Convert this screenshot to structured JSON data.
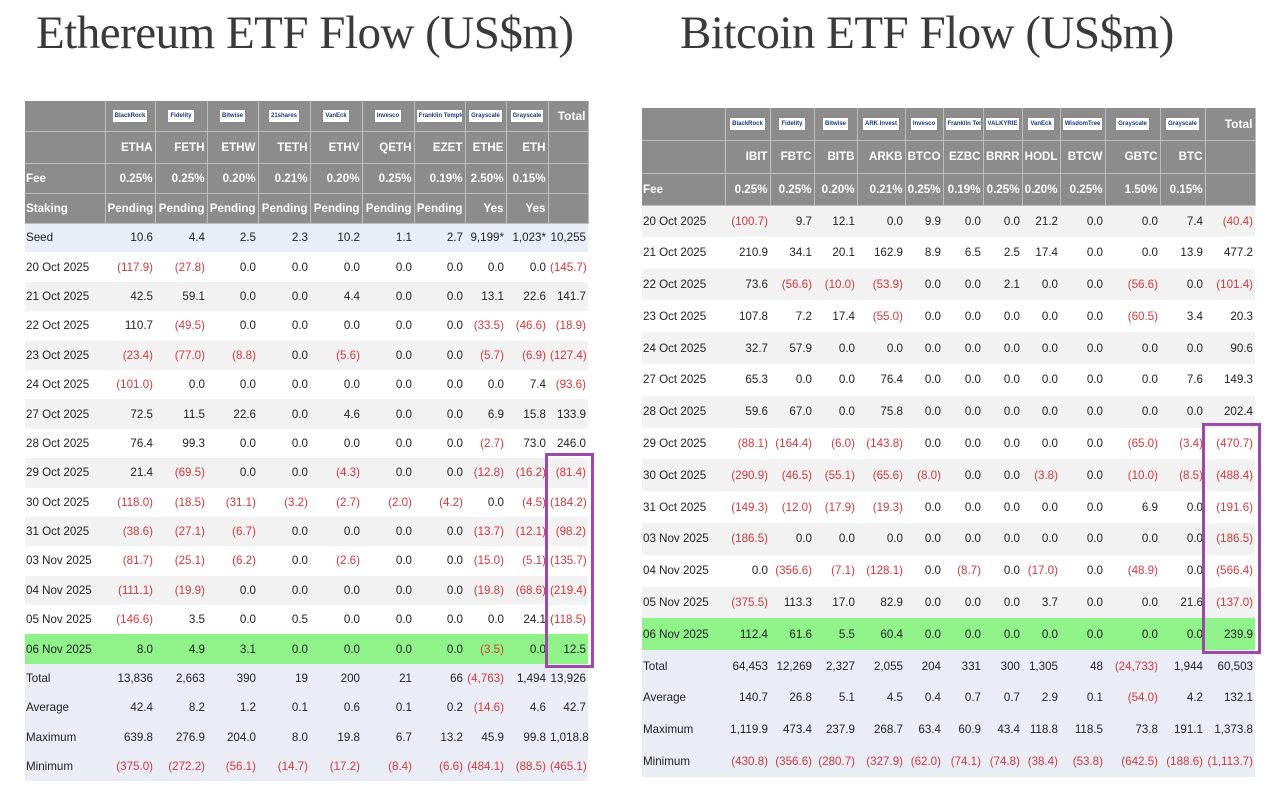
{
  "colors": {
    "header_bg": "#8c8c8c",
    "negative": "#d23a3c",
    "highlight_row": "#8ff38a",
    "outline_box": "#9c4aa8"
  },
  "chart_data": [
    {
      "type": "table",
      "title": "Ethereum ETF Flow (US$m)",
      "issuers": [
        "BlackRock",
        "Fidelity",
        "Bitwise",
        "21shares",
        "VanEck",
        "Invesco",
        "Franklin Templeton",
        "Grayscale",
        "Grayscale"
      ],
      "total_label": "Total",
      "tickers": [
        "ETHA",
        "FETH",
        "ETHW",
        "TETH",
        "ETHV",
        "QETH",
        "EZET",
        "ETHE",
        "ETH"
      ],
      "meta_rows": [
        {
          "label": "Fee",
          "values": [
            "0.25%",
            "0.25%",
            "0.20%",
            "0.21%",
            "0.20%",
            "0.25%",
            "0.19%",
            "2.50%",
            "0.15%"
          ]
        },
        {
          "label": "Staking",
          "values": [
            "Pending",
            "Pending",
            "Pending",
            "Pending",
            "Pending",
            "Pending",
            "Pending",
            "Yes",
            "Yes"
          ]
        }
      ],
      "rows": [
        {
          "label": "Seed",
          "kind": "seed",
          "values": [
            "10.6",
            "4.4",
            "2.5",
            "2.3",
            "10.2",
            "1.1",
            "2.7",
            "9,199*",
            "1,023*",
            "10,255"
          ]
        },
        {
          "label": "20 Oct 2025",
          "kind": "date",
          "values": [
            "(117.9)",
            "(27.8)",
            "0.0",
            "0.0",
            "0.0",
            "0.0",
            "0.0",
            "0.0",
            "0.0",
            "(145.7)"
          ]
        },
        {
          "label": "21 Oct 2025",
          "kind": "date",
          "values": [
            "42.5",
            "59.1",
            "0.0",
            "0.0",
            "4.4",
            "0.0",
            "0.0",
            "13.1",
            "22.6",
            "141.7"
          ]
        },
        {
          "label": "22 Oct 2025",
          "kind": "date",
          "values": [
            "110.7",
            "(49.5)",
            "0.0",
            "0.0",
            "0.0",
            "0.0",
            "0.0",
            "(33.5)",
            "(46.6)",
            "(18.9)"
          ]
        },
        {
          "label": "23 Oct 2025",
          "kind": "date",
          "values": [
            "(23.4)",
            "(77.0)",
            "(8.8)",
            "0.0",
            "(5.6)",
            "0.0",
            "0.0",
            "(5.7)",
            "(6.9)",
            "(127.4)"
          ]
        },
        {
          "label": "24 Oct 2025",
          "kind": "date",
          "values": [
            "(101.0)",
            "0.0",
            "0.0",
            "0.0",
            "0.0",
            "0.0",
            "0.0",
            "0.0",
            "7.4",
            "(93.6)"
          ]
        },
        {
          "label": "27 Oct 2025",
          "kind": "date",
          "values": [
            "72.5",
            "11.5",
            "22.6",
            "0.0",
            "4.6",
            "0.0",
            "0.0",
            "6.9",
            "15.8",
            "133.9"
          ]
        },
        {
          "label": "28 Oct 2025",
          "kind": "date",
          "values": [
            "76.4",
            "99.3",
            "0.0",
            "0.0",
            "0.0",
            "0.0",
            "0.0",
            "(2.7)",
            "73.0",
            "246.0"
          ]
        },
        {
          "label": "29 Oct 2025",
          "kind": "date",
          "values": [
            "21.4",
            "(69.5)",
            "0.0",
            "0.0",
            "(4.3)",
            "0.0",
            "0.0",
            "(12.8)",
            "(16.2)",
            "(81.4)"
          ]
        },
        {
          "label": "30 Oct 2025",
          "kind": "date",
          "values": [
            "(118.0)",
            "(18.5)",
            "(31.1)",
            "(3.2)",
            "(2.7)",
            "(2.0)",
            "(4.2)",
            "0.0",
            "(4.5)",
            "(184.2)"
          ]
        },
        {
          "label": "31 Oct 2025",
          "kind": "date",
          "values": [
            "(38.6)",
            "(27.1)",
            "(6.7)",
            "0.0",
            "0.0",
            "0.0",
            "0.0",
            "(13.7)",
            "(12.1)",
            "(98.2)"
          ]
        },
        {
          "label": "03 Nov 2025",
          "kind": "date",
          "values": [
            "(81.7)",
            "(25.1)",
            "(6.2)",
            "0.0",
            "(2.6)",
            "0.0",
            "0.0",
            "(15.0)",
            "(5.1)",
            "(135.7)"
          ]
        },
        {
          "label": "04 Nov 2025",
          "kind": "date",
          "values": [
            "(111.1)",
            "(19.9)",
            "0.0",
            "0.0",
            "0.0",
            "0.0",
            "0.0",
            "(19.8)",
            "(68.6)",
            "(219.4)"
          ]
        },
        {
          "label": "05 Nov 2025",
          "kind": "date",
          "values": [
            "(146.6)",
            "3.5",
            "0.0",
            "0.5",
            "0.0",
            "0.0",
            "0.0",
            "0.0",
            "24.1",
            "(118.5)"
          ]
        },
        {
          "label": "06 Nov 2025",
          "kind": "highlight",
          "values": [
            "8.0",
            "4.9",
            "3.1",
            "0.0",
            "0.0",
            "0.0",
            "0.0",
            "(3.5)",
            "0.0",
            "12.5"
          ]
        },
        {
          "label": "Total",
          "kind": "summary",
          "values": [
            "13,836",
            "2,663",
            "390",
            "19",
            "200",
            "21",
            "66",
            "(4,763)",
            "1,494",
            "13,926"
          ]
        },
        {
          "label": "Average",
          "kind": "summary",
          "values": [
            "42.4",
            "8.2",
            "1.2",
            "0.1",
            "0.6",
            "0.1",
            "0.2",
            "(14.6)",
            "4.6",
            "42.7"
          ]
        },
        {
          "label": "Maximum",
          "kind": "summary",
          "values": [
            "639.8",
            "276.9",
            "204.0",
            "8.0",
            "19.8",
            "6.7",
            "13.2",
            "45.9",
            "99.8",
            "1,018.8"
          ]
        },
        {
          "label": "Minimum",
          "kind": "summary",
          "values": [
            "(375.0)",
            "(272.2)",
            "(56.1)",
            "(14.7)",
            "(17.2)",
            "(8.4)",
            "(6.6)",
            "(484.1)",
            "(88.5)",
            "(465.1)"
          ]
        }
      ],
      "outlined": {
        "column": "Total",
        "from": "29 Oct 2025",
        "to": "06 Nov 2025"
      }
    },
    {
      "type": "table",
      "title": "Bitcoin ETF Flow (US$m)",
      "issuers": [
        "BlackRock",
        "Fidelity",
        "Bitwise",
        "ARK Invest",
        "Invesco",
        "Franklin Templeton",
        "VALKYRIE",
        "VanEck",
        "WisdomTree",
        "Grayscale",
        "Grayscale"
      ],
      "total_label": "Total",
      "tickers": [
        "IBIT",
        "FBTC",
        "BITB",
        "ARKB",
        "BTCO",
        "EZBC",
        "BRRR",
        "HODL",
        "BTCW",
        "GBTC",
        "BTC"
      ],
      "meta_rows": [
        {
          "label": "Fee",
          "values": [
            "0.25%",
            "0.25%",
            "0.20%",
            "0.21%",
            "0.25%",
            "0.19%",
            "0.25%",
            "0.20%",
            "0.25%",
            "1.50%",
            "0.15%"
          ]
        }
      ],
      "rows": [
        {
          "label": "20 Oct 2025",
          "kind": "date",
          "values": [
            "(100.7)",
            "9.7",
            "12.1",
            "0.0",
            "9.9",
            "0.0",
            "0.0",
            "21.2",
            "0.0",
            "0.0",
            "7.4",
            "(40.4)"
          ]
        },
        {
          "label": "21 Oct 2025",
          "kind": "date",
          "values": [
            "210.9",
            "34.1",
            "20.1",
            "162.9",
            "8.9",
            "6.5",
            "2.5",
            "17.4",
            "0.0",
            "0.0",
            "13.9",
            "477.2"
          ]
        },
        {
          "label": "22 Oct 2025",
          "kind": "date",
          "values": [
            "73.6",
            "(56.6)",
            "(10.0)",
            "(53.9)",
            "0.0",
            "0.0",
            "2.1",
            "0.0",
            "0.0",
            "(56.6)",
            "0.0",
            "(101.4)"
          ]
        },
        {
          "label": "23 Oct 2025",
          "kind": "date",
          "values": [
            "107.8",
            "7.2",
            "17.4",
            "(55.0)",
            "0.0",
            "0.0",
            "0.0",
            "0.0",
            "0.0",
            "(60.5)",
            "3.4",
            "20.3"
          ]
        },
        {
          "label": "24 Oct 2025",
          "kind": "date",
          "values": [
            "32.7",
            "57.9",
            "0.0",
            "0.0",
            "0.0",
            "0.0",
            "0.0",
            "0.0",
            "0.0",
            "0.0",
            "0.0",
            "90.6"
          ]
        },
        {
          "label": "27 Oct 2025",
          "kind": "date",
          "values": [
            "65.3",
            "0.0",
            "0.0",
            "76.4",
            "0.0",
            "0.0",
            "0.0",
            "0.0",
            "0.0",
            "0.0",
            "7.6",
            "149.3"
          ]
        },
        {
          "label": "28 Oct 2025",
          "kind": "date",
          "values": [
            "59.6",
            "67.0",
            "0.0",
            "75.8",
            "0.0",
            "0.0",
            "0.0",
            "0.0",
            "0.0",
            "0.0",
            "0.0",
            "202.4"
          ]
        },
        {
          "label": "29 Oct 2025",
          "kind": "date",
          "values": [
            "(88.1)",
            "(164.4)",
            "(6.0)",
            "(143.8)",
            "0.0",
            "0.0",
            "0.0",
            "0.0",
            "0.0",
            "(65.0)",
            "(3.4)",
            "(470.7)"
          ]
        },
        {
          "label": "30 Oct 2025",
          "kind": "date",
          "values": [
            "(290.9)",
            "(46.5)",
            "(55.1)",
            "(65.6)",
            "(8.0)",
            "0.0",
            "0.0",
            "(3.8)",
            "0.0",
            "(10.0)",
            "(8.5)",
            "(488.4)"
          ]
        },
        {
          "label": "31 Oct 2025",
          "kind": "date",
          "values": [
            "(149.3)",
            "(12.0)",
            "(17.9)",
            "(19.3)",
            "0.0",
            "0.0",
            "0.0",
            "0.0",
            "0.0",
            "6.9",
            "0.0",
            "(191.6)"
          ]
        },
        {
          "label": "03 Nov 2025",
          "kind": "date",
          "values": [
            "(186.5)",
            "0.0",
            "0.0",
            "0.0",
            "0.0",
            "0.0",
            "0.0",
            "0.0",
            "0.0",
            "0.0",
            "0.0",
            "(186.5)"
          ]
        },
        {
          "label": "04 Nov 2025",
          "kind": "date",
          "values": [
            "0.0",
            "(356.6)",
            "(7.1)",
            "(128.1)",
            "0.0",
            "(8.7)",
            "0.0",
            "(17.0)",
            "0.0",
            "(48.9)",
            "0.0",
            "(566.4)"
          ]
        },
        {
          "label": "05 Nov 2025",
          "kind": "date",
          "values": [
            "(375.5)",
            "113.3",
            "17.0",
            "82.9",
            "0.0",
            "0.0",
            "0.0",
            "3.7",
            "0.0",
            "0.0",
            "21.6",
            "(137.0)"
          ]
        },
        {
          "label": "06 Nov 2025",
          "kind": "highlight",
          "values": [
            "112.4",
            "61.6",
            "5.5",
            "60.4",
            "0.0",
            "0.0",
            "0.0",
            "0.0",
            "0.0",
            "0.0",
            "0.0",
            "239.9"
          ]
        },
        {
          "label": "Total",
          "kind": "summary",
          "values": [
            "64,453",
            "12,269",
            "2,327",
            "2,055",
            "204",
            "331",
            "300",
            "1,305",
            "48",
            "(24,733)",
            "1,944",
            "60,503"
          ]
        },
        {
          "label": "Average",
          "kind": "summary",
          "values": [
            "140.7",
            "26.8",
            "5.1",
            "4.5",
            "0.4",
            "0.7",
            "0.7",
            "2.9",
            "0.1",
            "(54.0)",
            "4.2",
            "132.1"
          ]
        },
        {
          "label": "Maximum",
          "kind": "summary",
          "values": [
            "1,119.9",
            "473.4",
            "237.9",
            "268.7",
            "63.4",
            "60.9",
            "43.4",
            "118.8",
            "118.5",
            "73.8",
            "191.1",
            "1,373.8"
          ]
        },
        {
          "label": "Minimum",
          "kind": "summary",
          "values": [
            "(430.8)",
            "(356.6)",
            "(280.7)",
            "(327.9)",
            "(62.0)",
            "(74.1)",
            "(74.8)",
            "(38.4)",
            "(53.8)",
            "(642.5)",
            "(188.6)",
            "(1,113.7)"
          ]
        }
      ],
      "outlined": {
        "column": "Total",
        "from": "29 Oct 2025",
        "to": "06 Nov 2025"
      }
    }
  ]
}
